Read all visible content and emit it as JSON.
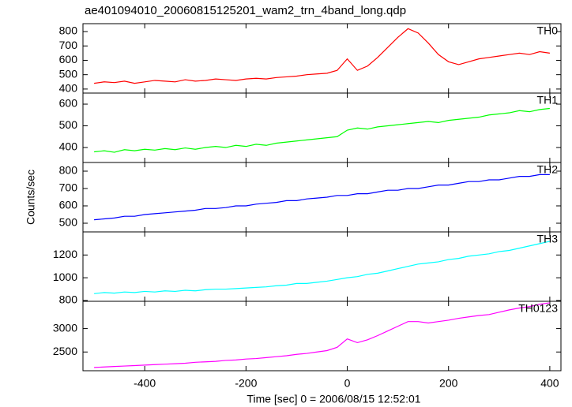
{
  "chart_data": [
    {
      "type": "line",
      "title": "ae401094010_20060815125201_wam2_trn_4band_long.qdp",
      "x": [
        -500,
        -480,
        -460,
        -440,
        -420,
        -400,
        -380,
        -360,
        -340,
        -320,
        -300,
        -280,
        -260,
        -240,
        -220,
        -200,
        -180,
        -160,
        -140,
        -120,
        -100,
        -80,
        -60,
        -40,
        -20,
        0,
        20,
        40,
        60,
        80,
        100,
        120,
        140,
        160,
        180,
        200,
        220,
        240,
        260,
        280,
        300,
        320,
        340,
        360,
        380,
        400
      ],
      "series": [
        {
          "name": "TH0",
          "color": "#ff0000",
          "values": [
            440,
            450,
            445,
            455,
            440,
            450,
            460,
            455,
            450,
            465,
            455,
            460,
            470,
            465,
            460,
            470,
            475,
            470,
            480,
            485,
            490,
            500,
            505,
            510,
            530,
            610,
            530,
            560,
            620,
            690,
            760,
            820,
            790,
            720,
            640,
            590,
            570,
            590,
            610,
            620,
            630,
            640,
            650,
            640,
            660,
            650
          ]
        }
      ],
      "xlim": [
        -522,
        422
      ],
      "xticks": [
        -400,
        -200,
        0,
        200,
        400
      ],
      "ylim": [
        372,
        855
      ],
      "yticks": [
        400,
        500,
        600,
        700,
        800
      ]
    },
    {
      "type": "line",
      "x": [
        -500,
        -480,
        -460,
        -440,
        -420,
        -400,
        -380,
        -360,
        -340,
        -320,
        -300,
        -280,
        -260,
        -240,
        -220,
        -200,
        -180,
        -160,
        -140,
        -120,
        -100,
        -80,
        -60,
        -40,
        -20,
        0,
        20,
        40,
        60,
        80,
        100,
        120,
        140,
        160,
        180,
        200,
        220,
        240,
        260,
        280,
        300,
        320,
        340,
        360,
        380,
        400
      ],
      "series": [
        {
          "name": "TH1",
          "color": "#00ff00",
          "values": [
            380,
            385,
            378,
            390,
            385,
            392,
            388,
            395,
            390,
            398,
            392,
            400,
            405,
            400,
            410,
            405,
            415,
            410,
            420,
            425,
            430,
            435,
            440,
            445,
            450,
            480,
            490,
            485,
            495,
            500,
            505,
            510,
            515,
            520,
            515,
            525,
            530,
            535,
            540,
            550,
            555,
            560,
            570,
            565,
            575,
            580
          ]
        }
      ],
      "xlim": [
        -522,
        422
      ],
      "xticks": [
        -400,
        -200,
        0,
        200,
        400
      ],
      "ylim": [
        331,
        651
      ],
      "yticks": [
        400,
        500,
        600
      ]
    },
    {
      "type": "line",
      "ylabel": "Counts/sec",
      "x": [
        -500,
        -480,
        -460,
        -440,
        -420,
        -400,
        -380,
        -360,
        -340,
        -320,
        -300,
        -280,
        -260,
        -240,
        -220,
        -200,
        -180,
        -160,
        -140,
        -120,
        -100,
        -80,
        -60,
        -40,
        -20,
        0,
        20,
        40,
        60,
        80,
        100,
        120,
        140,
        160,
        180,
        200,
        220,
        240,
        260,
        280,
        300,
        320,
        340,
        360,
        380,
        400
      ],
      "series": [
        {
          "name": "TH2",
          "color": "#0000ff",
          "values": [
            520,
            525,
            530,
            540,
            540,
            550,
            555,
            560,
            565,
            570,
            575,
            585,
            585,
            590,
            600,
            600,
            610,
            615,
            620,
            630,
            630,
            640,
            645,
            650,
            660,
            660,
            670,
            670,
            680,
            690,
            690,
            700,
            700,
            710,
            720,
            720,
            730,
            740,
            740,
            750,
            750,
            760,
            770,
            770,
            780,
            780
          ]
        }
      ],
      "xlim": [
        -522,
        422
      ],
      "xticks": [
        -400,
        -200,
        0,
        200,
        400
      ],
      "ylim": [
        450,
        850
      ],
      "yticks": [
        500,
        600,
        700,
        800
      ]
    },
    {
      "type": "line",
      "x": [
        -500,
        -480,
        -460,
        -440,
        -420,
        -400,
        -380,
        -360,
        -340,
        -320,
        -300,
        -280,
        -260,
        -240,
        -220,
        -200,
        -180,
        -160,
        -140,
        -120,
        -100,
        -80,
        -60,
        -40,
        -20,
        0,
        20,
        40,
        60,
        80,
        100,
        120,
        140,
        160,
        180,
        200,
        220,
        240,
        260,
        280,
        300,
        320,
        340,
        360,
        380,
        400
      ],
      "series": [
        {
          "name": "TH3",
          "color": "#00ffff",
          "values": [
            860,
            870,
            865,
            875,
            870,
            880,
            875,
            885,
            880,
            890,
            885,
            895,
            900,
            900,
            905,
            910,
            915,
            920,
            930,
            935,
            950,
            950,
            960,
            970,
            985,
            1000,
            1010,
            1030,
            1040,
            1060,
            1080,
            1100,
            1120,
            1130,
            1140,
            1160,
            1170,
            1190,
            1200,
            1210,
            1230,
            1240,
            1260,
            1280,
            1300,
            1320
          ]
        }
      ],
      "xlim": [
        -522,
        422
      ],
      "xticks": [
        -400,
        -200,
        0,
        200,
        400
      ],
      "ylim": [
        793,
        1403
      ],
      "yticks": [
        800,
        1000,
        1200
      ]
    },
    {
      "type": "line",
      "xlabel": "Time [sec] 0 = 2006/08/15 12:52:01",
      "x": [
        -500,
        -480,
        -460,
        -440,
        -420,
        -400,
        -380,
        -360,
        -340,
        -320,
        -300,
        -280,
        -260,
        -240,
        -220,
        -200,
        -180,
        -160,
        -140,
        -120,
        -100,
        -80,
        -60,
        -40,
        -20,
        0,
        20,
        40,
        60,
        80,
        100,
        120,
        140,
        160,
        180,
        200,
        220,
        240,
        260,
        280,
        300,
        320,
        340,
        360,
        380,
        400
      ],
      "series": [
        {
          "name": "TH0123",
          "color": "#ff00ff",
          "values": [
            2170,
            2180,
            2190,
            2200,
            2210,
            2220,
            2230,
            2240,
            2250,
            2260,
            2280,
            2290,
            2300,
            2320,
            2330,
            2350,
            2360,
            2380,
            2400,
            2420,
            2450,
            2470,
            2500,
            2530,
            2600,
            2780,
            2700,
            2760,
            2850,
            2950,
            3050,
            3150,
            3150,
            3120,
            3150,
            3180,
            3220,
            3250,
            3280,
            3300,
            3350,
            3400,
            3440,
            3470,
            3520,
            3550
          ]
        }
      ],
      "xlim": [
        -522,
        422
      ],
      "xticks": [
        -400,
        -200,
        0,
        200,
        400
      ],
      "ylim": [
        2100,
        3583
      ],
      "yticks": [
        2500,
        3000
      ]
    }
  ]
}
